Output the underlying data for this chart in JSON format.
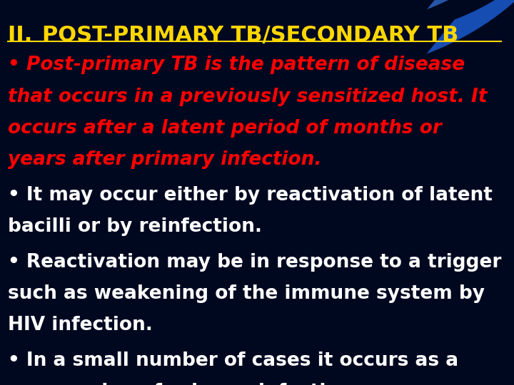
{
  "background_color": "#000820",
  "title_prefix": "II. ",
  "title_underline_part": "POST-PRIMARY TB/SECONDARY TB",
  "title_color": "#FFD700",
  "bullet1_lines": [
    "• Post-primary TB is the pattern of disease",
    "that occurs in a previously sensitized host. It",
    "occurs after a latent period of months or",
    "years after primary infection."
  ],
  "bullet1_color": "#FF0000",
  "bullet2_lines": [
    "• It may occur either by reactivation of latent",
    "bacilli or by reinfection."
  ],
  "bullet2_color": "#FFFFFF",
  "bullet3_lines": [
    "• Reactivation may be in response to a trigger",
    "such as weakening of the immune system by",
    "HIV infection."
  ],
  "bullet3_color": "#FFFFFF",
  "bullet4_lines": [
    "• In a small number of cases it occurs as a",
    "progression of primary infection."
  ],
  "bullet4_color": "#FFFFFF",
  "font_size_title": 22,
  "font_size_body": 19,
  "font_family": "DejaVu Sans",
  "blue_band1_color": "#1a5acd",
  "blue_band2_color": "#4488ff",
  "underline_color": "#FFD700",
  "underline_linewidth": 1.5
}
